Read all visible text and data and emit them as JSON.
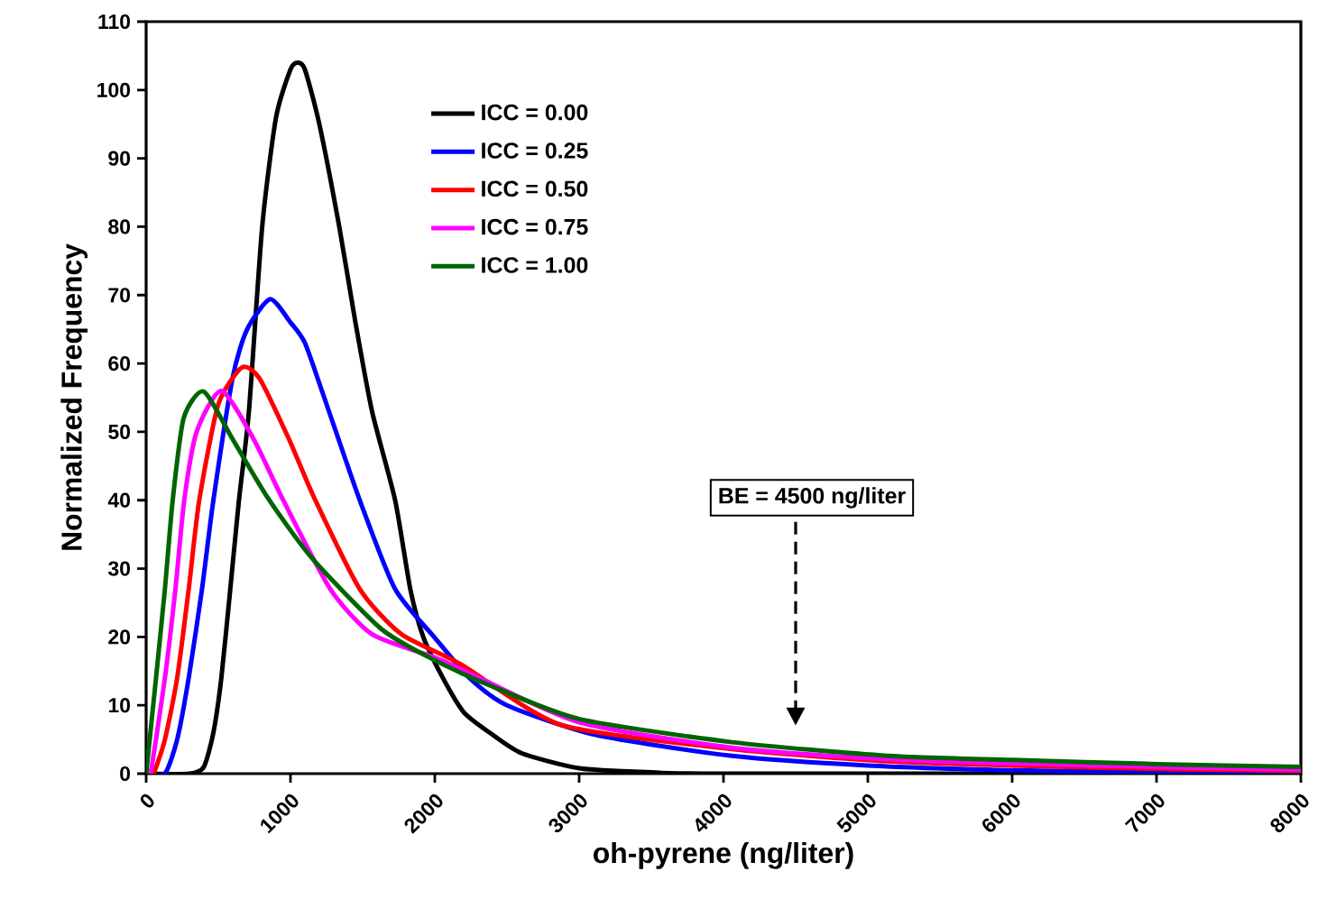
{
  "chart_data": {
    "type": "line",
    "xlabel": "oh-pyrene (ng/liter)",
    "ylabel": "Normalized Frequency",
    "xlim": [
      0,
      8000
    ],
    "xticks": [
      0,
      1000,
      2000,
      3000,
      4000,
      5000,
      6000,
      7000,
      8000
    ],
    "ylim": [
      0,
      110
    ],
    "yticks": [
      0,
      10,
      20,
      30,
      40,
      50,
      60,
      70,
      80,
      90,
      100,
      110
    ],
    "grid": false,
    "legend": "top left",
    "marker": "none",
    "line_style": "solid",
    "annotations": [
      "BE = 4500 ng/liter"
    ],
    "series": [
      {
        "name": "ICC = 0.00",
        "color": "#000000",
        "x": [
          0,
          300,
          400,
          466,
          521,
          583,
          643,
          712,
          804,
          900,
          1000,
          1050,
          1100,
          1200,
          1338,
          1450,
          1565,
          1725,
          1830,
          1920,
          2056,
          2200,
          2380,
          2600,
          3000,
          3500,
          4000,
          8000
        ],
        "values": [
          0,
          0,
          1,
          6,
          14,
          27,
          40,
          53,
          80,
          96,
          103,
          104,
          103,
          95,
          80,
          66,
          53,
          40,
          27,
          20,
          14,
          9,
          6,
          3,
          0.8,
          0.2,
          0,
          0
        ]
      },
      {
        "name": "ICC = 0.25",
        "color": "#0000ff",
        "x": [
          0,
          130,
          215,
          295,
          387,
          466,
          600,
          700,
          859,
          1000,
          1100,
          1234,
          1480,
          1725,
          1995,
          2240,
          2500,
          3110,
          4060,
          5000,
          6000,
          7000,
          8000
        ],
        "values": [
          0,
          0,
          5,
          14,
          27,
          40,
          58,
          65,
          69.4,
          66,
          63,
          55,
          40,
          27,
          20,
          14,
          10,
          5.7,
          2.6,
          1.2,
          0.5,
          0.2,
          0.1
        ]
      },
      {
        "name": "ICC = 0.50",
        "color": "#ff0000",
        "x": [
          0,
          50,
          130,
          215,
          295,
          368,
          500,
          663,
          786,
          988,
          1172,
          1480,
          1768,
          2180,
          2880,
          4060,
          5140,
          6000,
          7000,
          8000
        ],
        "values": [
          0,
          0,
          5,
          14,
          27,
          40,
          54,
          59.4,
          57.8,
          49,
          40,
          27,
          20.4,
          16,
          7.1,
          3.6,
          1.8,
          1.2,
          0.7,
          0.4
        ]
      },
      {
        "name": "ICC = 0.75",
        "color": "#ff00ff",
        "x": [
          0,
          30,
          130,
          203,
          264,
          350,
          521,
          743,
          950,
          1276,
          1565,
          2000,
          2290,
          3000,
          4060,
          5140,
          6000,
          7000,
          8000
        ],
        "values": [
          0,
          0,
          14,
          27,
          40,
          50,
          56,
          49,
          40,
          27,
          20.4,
          17,
          14.2,
          7.5,
          3.8,
          2.1,
          1.5,
          1,
          0.6
        ]
      },
      {
        "name": "ICC = 1.00",
        "color": "#006400",
        "x": [
          0,
          68,
          130,
          184,
          260,
          399,
          600,
          847,
          1154,
          1627,
          1970,
          2382,
          3000,
          4060,
          5140,
          6000,
          7000,
          8000
        ],
        "values": [
          0,
          13.9,
          27,
          40,
          52,
          55.9,
          48.9,
          40.2,
          31.4,
          21.2,
          16.9,
          12.9,
          8,
          4.6,
          2.6,
          2,
          1.4,
          1
        ]
      }
    ]
  }
}
